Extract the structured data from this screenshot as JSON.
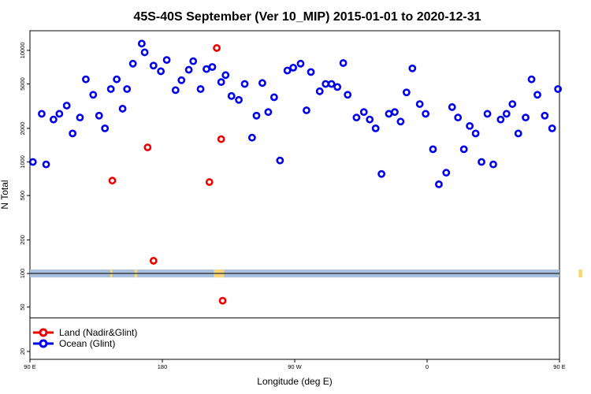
{
  "chart_data": {
    "type": "scatter",
    "title": "45S-40S September (Ver 10_MIP)   2015-01-01 to 2020-12-31",
    "xlabel": "Longitude (deg E)",
    "ylabel": "N Total",
    "yscale": "log",
    "xlim": [
      90,
      450
    ],
    "ylim": [
      17,
      15000
    ],
    "x_ticks": [
      {
        "value": 90,
        "label": "90 E"
      },
      {
        "value": 180,
        "label": "180"
      },
      {
        "value": 270,
        "label": "90 W"
      },
      {
        "value": 360,
        "label": "0"
      },
      {
        "value": 450,
        "label": "90 E"
      },
      {
        "value": 540,
        "label": "180"
      }
    ],
    "y_ticks": [
      {
        "value": 20,
        "label": "20"
      },
      {
        "value": 50,
        "label": "50"
      },
      {
        "value": 100,
        "label": "100"
      },
      {
        "value": 200,
        "label": "200"
      },
      {
        "value": 500,
        "label": "500"
      },
      {
        "value": 1000,
        "label": "1000"
      },
      {
        "value": 2000,
        "label": "2000"
      },
      {
        "value": 5000,
        "label": "5000"
      },
      {
        "value": 10000,
        "label": "10000"
      }
    ],
    "hline_value": 100,
    "hline2_value": 40,
    "map_band_color": "#a9bfde",
    "land_color": "#f5d77a",
    "land_x": [
      [
        144.5,
        146
      ],
      [
        161,
        163
      ],
      [
        215,
        222
      ],
      [
        463,
        465.5
      ],
      [
        487,
        493
      ]
    ],
    "series": [
      {
        "name": "Land (Nadir&Glint)",
        "color": "#ee0000",
        "points": [
          [
            146,
            680
          ],
          [
            170,
            1350
          ],
          [
            174,
            130
          ],
          [
            212,
            660
          ],
          [
            217,
            10500
          ],
          [
            220,
            1600
          ],
          [
            221,
            57
          ],
          [
            471,
            680
          ],
          [
            486,
            22
          ],
          [
            492,
            1350
          ],
          [
            495,
            130
          ]
        ]
      },
      {
        "name": "Ocean (Glint)",
        "color": "#0000ee",
        "points": [
          [
            92,
            1000
          ],
          [
            98,
            2700
          ],
          [
            101,
            950
          ],
          [
            106,
            2400
          ],
          [
            110,
            2700
          ],
          [
            115,
            3200
          ],
          [
            119,
            1800
          ],
          [
            124,
            2500
          ],
          [
            128,
            5500
          ],
          [
            133,
            4000
          ],
          [
            137,
            2600
          ],
          [
            141,
            2000
          ],
          [
            145,
            4500
          ],
          [
            149,
            5500
          ],
          [
            153,
            3000
          ],
          [
            156,
            4500
          ],
          [
            160,
            7600
          ],
          [
            166,
            11500
          ],
          [
            168,
            9600
          ],
          [
            174,
            7300
          ],
          [
            179,
            6500
          ],
          [
            183,
            8200
          ],
          [
            189,
            4400
          ],
          [
            193,
            5400
          ],
          [
            198,
            6700
          ],
          [
            201,
            8000
          ],
          [
            206,
            4500
          ],
          [
            210,
            6800
          ],
          [
            214,
            7100
          ],
          [
            220,
            5200
          ],
          [
            223,
            6000
          ],
          [
            227,
            3900
          ],
          [
            232,
            3600
          ],
          [
            236,
            5000
          ],
          [
            241,
            1650
          ],
          [
            244,
            2600
          ],
          [
            248,
            5100
          ],
          [
            252,
            2800
          ],
          [
            256,
            3800
          ],
          [
            260,
            1030
          ],
          [
            265,
            6600
          ],
          [
            269,
            7000
          ],
          [
            274,
            7600
          ],
          [
            278,
            2900
          ],
          [
            281,
            6400
          ],
          [
            287,
            4300
          ],
          [
            291,
            5000
          ],
          [
            295,
            5000
          ],
          [
            299,
            4700
          ],
          [
            303,
            7700
          ],
          [
            306,
            4000
          ],
          [
            312,
            2500
          ],
          [
            317,
            2800
          ],
          [
            321,
            2400
          ],
          [
            325,
            2000
          ],
          [
            329,
            780
          ],
          [
            334,
            2700
          ],
          [
            338,
            2800
          ],
          [
            342,
            2300
          ],
          [
            346,
            4200
          ],
          [
            350,
            6900
          ],
          [
            355,
            3300
          ],
          [
            359,
            2700
          ],
          [
            364,
            1300
          ],
          [
            368,
            630
          ],
          [
            373,
            800
          ],
          [
            377,
            3100
          ],
          [
            381,
            2500
          ],
          [
            385,
            1300
          ],
          [
            389,
            2100
          ],
          [
            393,
            1800
          ],
          [
            397,
            1000
          ],
          [
            401,
            2700
          ],
          [
            405,
            950
          ],
          [
            410,
            2400
          ],
          [
            414,
            2700
          ],
          [
            418,
            3300
          ],
          [
            422,
            1800
          ],
          [
            427,
            2500
          ],
          [
            431,
            5500
          ],
          [
            435,
            4000
          ],
          [
            440,
            2600
          ],
          [
            445,
            2000
          ],
          [
            449,
            4500
          ],
          [
            452,
            5500
          ],
          [
            457,
            3000
          ],
          [
            461,
            4500
          ],
          [
            465,
            7600
          ],
          [
            469,
            11500
          ]
        ]
      }
    ]
  }
}
